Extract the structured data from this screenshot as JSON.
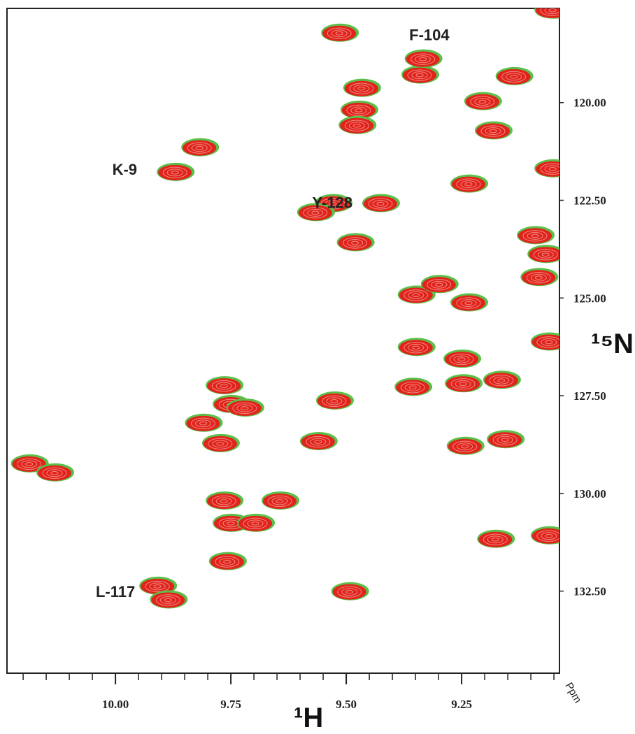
{
  "chart_data": {
    "type": "nmr-peaks",
    "x_label": "¹H",
    "y_label": "¹⁵N",
    "unit_label": "Ppm",
    "xlim": [
      10.235,
      9.038
    ],
    "ylim": [
      117.59,
      134.6
    ],
    "xticks": [
      {
        "value": 10,
        "label": "10.00"
      },
      {
        "value": 9.75,
        "label": "9.75"
      },
      {
        "value": 9.5,
        "label": "9.50"
      },
      {
        "value": 9.25,
        "label": "9.25"
      }
    ],
    "xminor_ticks": [
      10.2,
      10.15,
      10.1,
      10.05,
      9.95,
      9.9,
      9.85,
      9.8,
      9.7,
      9.65,
      9.6,
      9.55,
      9.45,
      9.4,
      9.35,
      9.3,
      9.2,
      9.15,
      9.1,
      9.05
    ],
    "yticks": [
      {
        "value": 120,
        "label": "120.00"
      },
      {
        "value": 122.5,
        "label": "122.50"
      },
      {
        "value": 125,
        "label": "125.00"
      },
      {
        "value": 127.5,
        "label": "127.50"
      },
      {
        "value": 130,
        "label": "130.00"
      },
      {
        "value": 132.5,
        "label": "132.50"
      }
    ],
    "colors": [
      "#5cbf4a",
      "#e0231c"
    ],
    "x": [
      9.515,
      9.341,
      9.334,
      9.137,
      9.467,
      9.473,
      9.477,
      9.205,
      9.182,
      9.818,
      9.871,
      9.053,
      9.235,
      9.529,
      9.426,
      9.567,
      9.481,
      9.091,
      9.068,
      9.083,
      9.349,
      9.235,
      9.299,
      9.061,
      9.349,
      9.25,
      9.164,
      9.356,
      9.247,
      9.765,
      9.75,
      9.81,
      9.72,
      9.526,
      9.561,
      9.773,
      9.243,
      9.156,
      10.187,
      10.132,
      9.765,
      9.644,
      9.75,
      9.177,
      9.061,
      9.758,
      9.909,
      9.886,
      9.493,
      9.053,
      9.697
    ],
    "y": [
      118.23,
      119.3,
      118.89,
      119.34,
      119.64,
      120.2,
      120.59,
      119.98,
      120.73,
      121.16,
      121.79,
      121.7,
      122.09,
      122.59,
      122.59,
      122.82,
      123.59,
      123.41,
      123.89,
      124.48,
      124.93,
      125.13,
      124.66,
      126.13,
      126.27,
      126.57,
      127.11,
      127.29,
      127.2,
      127.25,
      127.73,
      128.21,
      127.82,
      127.64,
      128.68,
      128.73,
      128.8,
      128.63,
      129.25,
      129.48,
      130.2,
      130.2,
      130.77,
      131.18,
      131.09,
      131.75,
      132.38,
      132.73,
      132.52,
      117.64,
      130.77
    ],
    "annotations": [
      {
        "text": "F-104",
        "x": 9.32,
        "y": 118.4
      },
      {
        "text": "K-9",
        "x": 9.98,
        "y": 121.85
      },
      {
        "text": "Y-128",
        "x": 9.53,
        "y": 122.7
      },
      {
        "text": "L-117",
        "x": 10.0,
        "y": 132.65
      }
    ]
  }
}
